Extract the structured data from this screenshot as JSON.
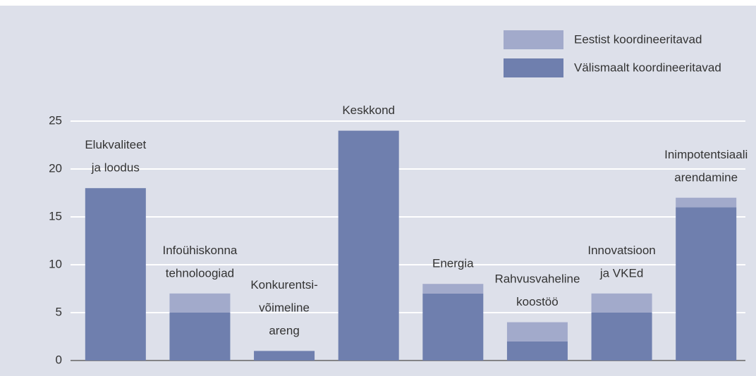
{
  "chart_data": {
    "type": "stacked-bar",
    "categories": [
      [
        "Elukvaliteet",
        "ja loodus"
      ],
      [
        "Infoühiskonna",
        "tehnoloogiad"
      ],
      [
        "Konkurentsi-",
        "võimeline",
        "areng"
      ],
      [
        "Keskkond"
      ],
      [
        "Energia"
      ],
      [
        "Rahvusvaheline",
        "koostöö"
      ],
      [
        "Innovatsioon",
        "ja VKEd"
      ],
      [
        "Inimpotentsiaali",
        "arendamine"
      ]
    ],
    "series": [
      {
        "name": "Välismaalt koordineeritavad",
        "color": "#6f7fae",
        "values": [
          18,
          5,
          1,
          24,
          7,
          2,
          5,
          16
        ]
      },
      {
        "name": "Eestist koordineeritavad",
        "color": "#a2aacb",
        "values": [
          0,
          2,
          0,
          0,
          1,
          2,
          2,
          1
        ]
      }
    ],
    "legend_order": [
      1,
      0
    ],
    "ylim": [
      0,
      25
    ],
    "yticks": [
      0,
      5,
      10,
      15,
      20,
      25
    ],
    "grid": true
  }
}
